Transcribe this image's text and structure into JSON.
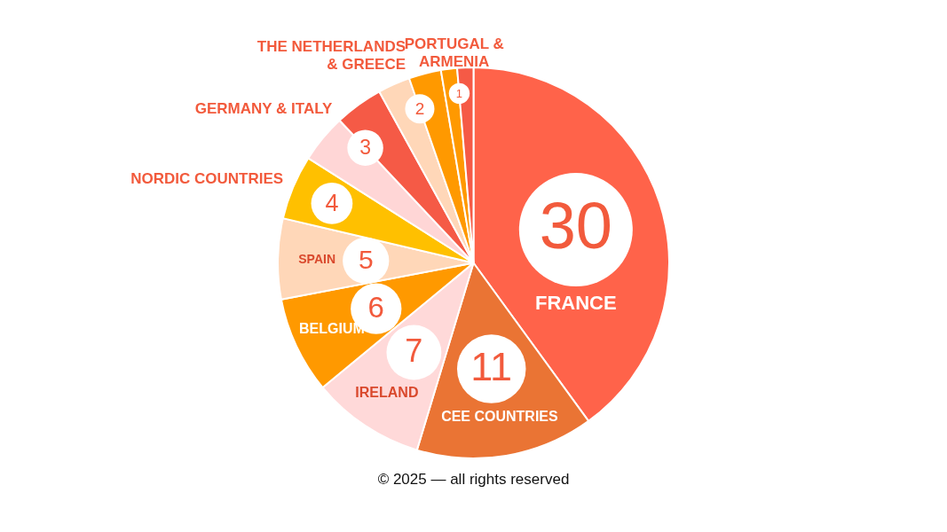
{
  "chart_data": {
    "type": "pie",
    "categories": [
      "FRANCE",
      "CEE COUNTRIES",
      "IRELAND",
      "BELGIUM",
      "SPAIN",
      "NORDIC COUNTRIES",
      "GERMANY & ITALY",
      null,
      "THE NETHERLANDS & GREECE",
      null,
      "PORTUGAL & ARMENIA",
      null
    ],
    "values": [
      30,
      11,
      7,
      6,
      5,
      4,
      3,
      3,
      2,
      2,
      1,
      1
    ],
    "value_labels": [
      "30",
      "11",
      "7",
      "6",
      "5",
      "4",
      "3",
      null,
      "2",
      null,
      "1",
      null
    ],
    "colors": [
      "#ff634a",
      "#ea7434",
      "#ffd9d9",
      "#ff9900",
      "#ffd7b8",
      "#ffc000",
      "#ffd6d6",
      "#f55a46",
      "#ffd7b8",
      "#ff9900",
      "#ff9900",
      "#f55a46"
    ],
    "legend": false,
    "annotations": [
      "© 2025 — all rights reserved"
    ]
  }
}
